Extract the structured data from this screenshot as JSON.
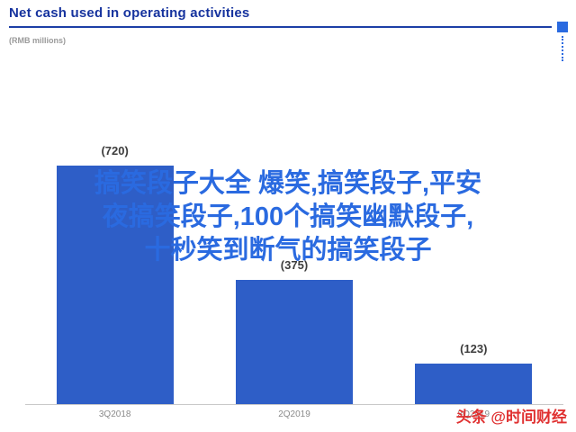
{
  "header": {
    "title": "Net cash used in operating activities",
    "subtitle": "(RMB millions)"
  },
  "chart_data": {
    "type": "bar",
    "title": "Net cash used in operating activities",
    "unit_label": "(RMB millions)",
    "categories": [
      "3Q2018",
      "2Q2019",
      "3Q2019"
    ],
    "values": [
      720,
      375,
      123
    ],
    "value_labels": [
      "(720)",
      "(375)",
      "(123)"
    ],
    "bar_color": "#2e5ec7",
    "ylim": [
      0,
      760
    ],
    "grid": false,
    "legend": false,
    "xlabel": "",
    "ylabel": ""
  },
  "watermark": {
    "lines": [
      "搞笑段子大全 爆笑,搞笑段子,平安",
      "夜搞笑段子,100个搞笑幽默段子,",
      "十秒笑到断气的搞笑段子"
    ],
    "color": "#2a6ae0"
  },
  "footer": {
    "credit": "头条 @时间财经",
    "color": "#e03131"
  }
}
